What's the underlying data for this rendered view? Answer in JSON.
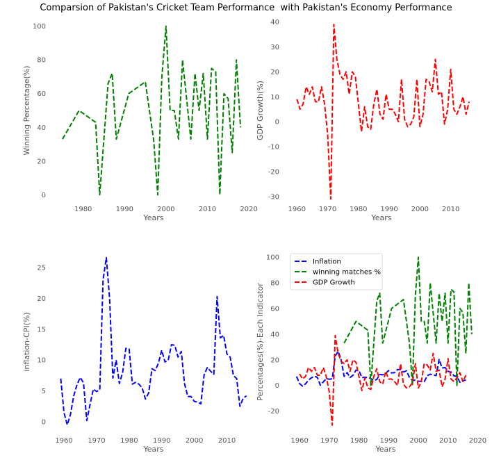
{
  "suptitle": "Comparsion of Pakistan's Cricket Team Performance  with Pakistan's Economy Performance",
  "colors": {
    "inflation": "#0000ff",
    "winning": "#008000",
    "gdp": "#ff0000",
    "axis_text": "#555555"
  },
  "chart_data": [
    {
      "type": "line",
      "xlabel": "Years",
      "ylabel": "Winning Percentage(%)",
      "xlim": [
        1973,
        2021
      ],
      "ylim": [
        -4,
        104
      ],
      "xticks": [
        1980,
        1990,
        2000,
        2010,
        2020
      ],
      "yticks": [
        0,
        20,
        40,
        60,
        80,
        100
      ],
      "grid": false,
      "series": [
        {
          "key": "winning",
          "color": "#008000",
          "x": [
            1975,
            1979,
            1983,
            1984,
            1986,
            1987,
            1988,
            1991,
            1995,
            1997,
            1998,
            1999,
            2000,
            2001,
            2002,
            2003,
            2004,
            2006,
            2007,
            2008,
            2009,
            2010,
            2011,
            2012,
            2013,
            2014,
            2015,
            2016,
            2017,
            2018
          ],
          "y": [
            33,
            50,
            43,
            0,
            66,
            72,
            33,
            60,
            67,
            33,
            0,
            70,
            100,
            50,
            50,
            33,
            80,
            33,
            72,
            50,
            72,
            33,
            75,
            73,
            0,
            60,
            57,
            25,
            80,
            40
          ]
        }
      ]
    },
    {
      "type": "line",
      "xlabel": "Years",
      "ylabel": "GDP Growth(%)",
      "xlim": [
        1957,
        2018
      ],
      "ylim": [
        -32,
        41
      ],
      "xticks": [
        1960,
        1970,
        1980,
        1990,
        2000,
        2010
      ],
      "yticks": [
        -30,
        -20,
        -10,
        0,
        10,
        20,
        30,
        40
      ],
      "grid": false,
      "series": [
        {
          "key": "gdp",
          "color": "#ff0000",
          "x": [
            1960,
            1961,
            1962,
            1963,
            1964,
            1965,
            1966,
            1967,
            1968,
            1969,
            1970,
            1971,
            1972,
            1973,
            1974,
            1975,
            1976,
            1977,
            1978,
            1979,
            1980,
            1981,
            1982,
            1983,
            1984,
            1985,
            1986,
            1987,
            1988,
            1989,
            1990,
            1991,
            1992,
            1993,
            1994,
            1995,
            1996,
            1997,
            1998,
            1999,
            2000,
            2001,
            2002,
            2003,
            2004,
            2005,
            2006,
            2007,
            2008,
            2009,
            2010,
            2011,
            2012,
            2013,
            2014,
            2015,
            2016
          ],
          "y": [
            9,
            5,
            7,
            14,
            11,
            14,
            8,
            8,
            14,
            7,
            -5,
            -31,
            39,
            25,
            19,
            17,
            20,
            11,
            20,
            18,
            7,
            -4,
            6,
            -2,
            -3,
            7,
            13,
            3,
            1,
            11,
            5,
            5,
            3,
            0,
            17,
            1,
            -2,
            -1,
            2,
            17,
            -2,
            3,
            17,
            16,
            12,
            25,
            11,
            12,
            -1,
            5,
            21,
            5,
            3,
            6,
            10,
            3,
            8
          ]
        }
      ]
    },
    {
      "type": "line",
      "xlabel": "Years",
      "ylabel": "inflation-CPI(%)",
      "xlim": [
        1957,
        2018
      ],
      "ylim": [
        -1.8,
        27.7
      ],
      "xticks": [
        1960,
        1970,
        1980,
        1990,
        2000,
        2010
      ],
      "yticks": [
        0,
        5,
        10,
        15,
        20,
        25
      ],
      "grid": false,
      "series": [
        {
          "key": "inflation",
          "color": "#0000ff",
          "x": [
            1959,
            1960,
            1961,
            1962,
            1963,
            1964,
            1965,
            1966,
            1967,
            1968,
            1969,
            1970,
            1971,
            1972,
            1973,
            1974,
            1975,
            1976,
            1977,
            1978,
            1979,
            1980,
            1981,
            1982,
            1983,
            1984,
            1985,
            1986,
            1987,
            1988,
            1989,
            1990,
            1991,
            1992,
            1993,
            1994,
            1995,
            1996,
            1997,
            1998,
            1999,
            2000,
            2001,
            2002,
            2003,
            2004,
            2005,
            2006,
            2007,
            2008,
            2009,
            2010,
            2011,
            2012,
            2013,
            2014,
            2015,
            2016
          ],
          "y": [
            7,
            1.5,
            -0.5,
            1.2,
            4.2,
            6,
            7.2,
            6.3,
            0.2,
            2.8,
            5.3,
            4.9,
            5.2,
            23,
            26.6,
            20,
            7.1,
            10,
            6.2,
            8,
            11.9,
            11.8,
            6.1,
            6.4,
            6.1,
            5.5,
            3.7,
            4.7,
            8.6,
            8.3,
            9.5,
            11.6,
            9.7,
            10,
            12.5,
            12.4,
            10.5,
            11.4,
            6.2,
            4.1,
            4.1,
            3.3,
            3.2,
            2.9,
            7.6,
            8.8,
            8.2,
            7.7,
            20.3,
            13.6,
            14,
            11,
            10.5,
            7.5,
            7,
            2.5,
            3.8,
            4.2
          ]
        }
      ]
    },
    {
      "type": "line",
      "xlabel": "Years",
      "ylabel": "Percentages(%)-Each Indicator",
      "xlim": [
        1956,
        2022
      ],
      "ylim": [
        -37,
        105
      ],
      "xticks": [
        1960,
        1970,
        1980,
        1990,
        2000,
        2010,
        2020
      ],
      "yticks": [
        -20,
        0,
        20,
        40,
        60,
        80,
        100
      ],
      "grid": false,
      "legend": "top-left",
      "series": [
        {
          "key": "inflation",
          "name": "Inflation",
          "color": "#0000ff",
          "ref": 2
        },
        {
          "key": "winning",
          "name": "winning matches %",
          "color": "#008000",
          "ref": 0
        },
        {
          "key": "gdp",
          "name": "GDP Growth",
          "color": "#ff0000",
          "ref": 1
        }
      ]
    }
  ]
}
